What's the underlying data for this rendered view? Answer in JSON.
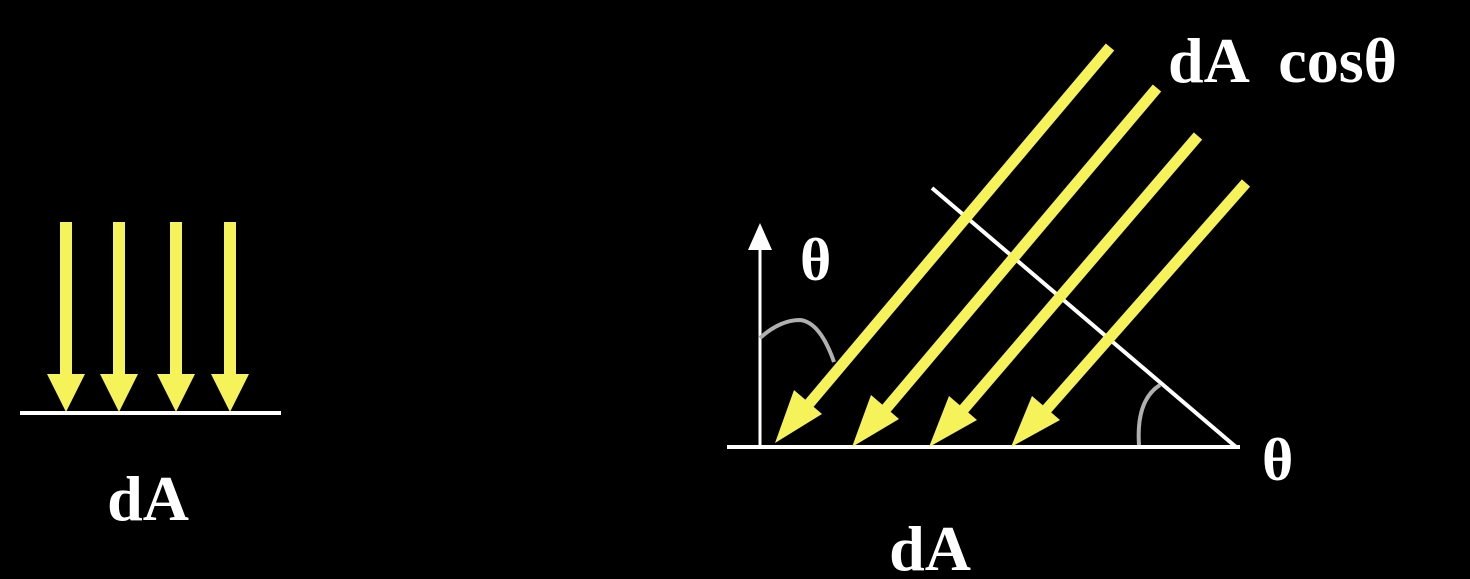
{
  "labels": {
    "left_area": "dA",
    "right_area": "dA",
    "projected_area": "dA  cosθ",
    "normal_angle": "θ",
    "corner_angle": "θ"
  },
  "colors": {
    "background": "#000000",
    "rays": "#f5f25a",
    "surface": "#ffffff",
    "angle_arc": "#b0b0b0"
  }
}
